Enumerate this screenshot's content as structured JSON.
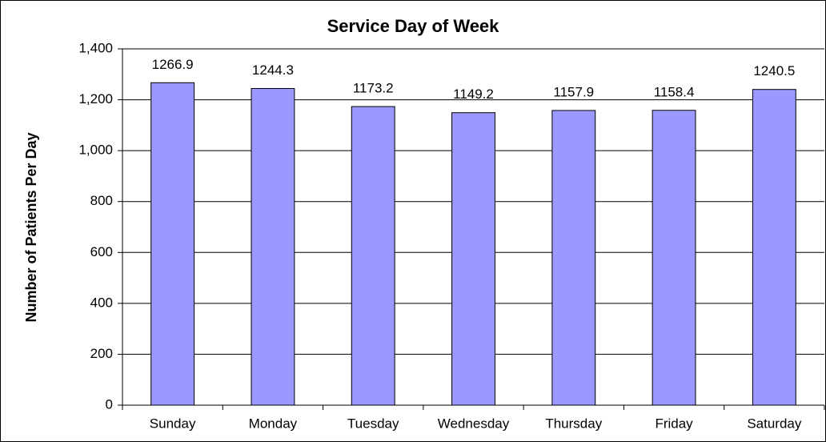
{
  "chart_data": {
    "type": "bar",
    "title": "Service Day of Week",
    "y_label": "Number of Patients Per Day",
    "categories": [
      "Sunday",
      "Monday",
      "Tuesday",
      "Wednesday",
      "Thursday",
      "Friday",
      "Saturday"
    ],
    "values": [
      1266.9,
      1244.3,
      1173.2,
      1149.2,
      1157.9,
      1158.4,
      1240.5
    ],
    "color": "#9999ff",
    "ylim": [
      0,
      1400
    ],
    "yticks": [
      0,
      200,
      400,
      600,
      800,
      {
        "value": 1000,
        "label": "1,000"
      },
      {
        "value": 1200,
        "label": "1,200"
      },
      {
        "value": 1400,
        "label": "1,400"
      }
    ],
    "grid": true
  }
}
